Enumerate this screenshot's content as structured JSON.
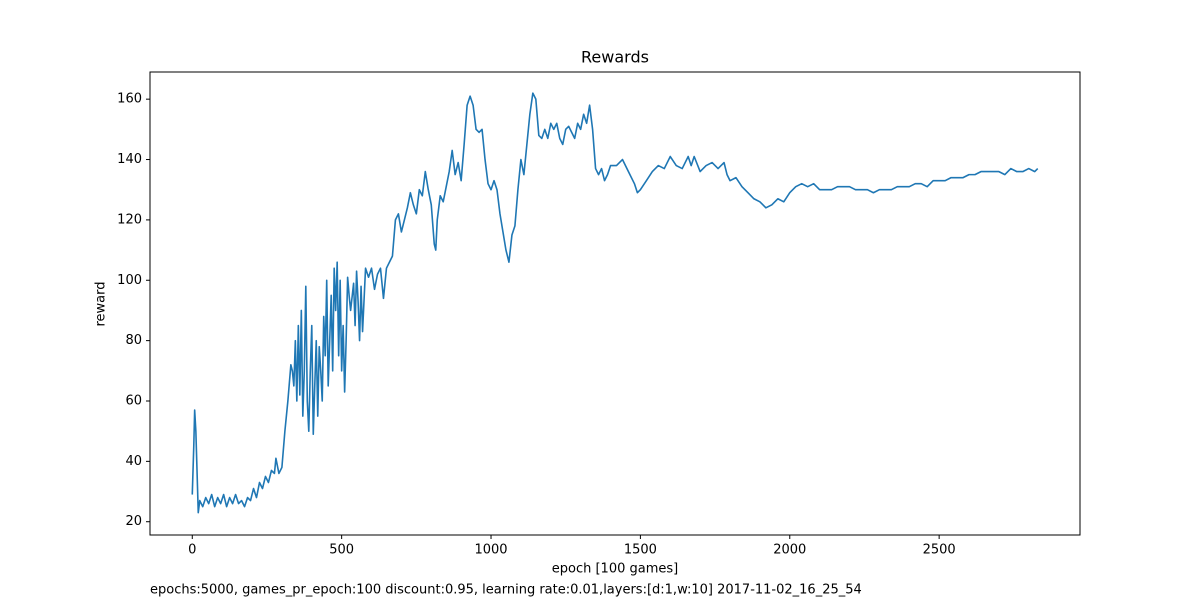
{
  "chart_data": {
    "type": "line",
    "title": "Rewards",
    "xlabel": "epoch [100 games]",
    "ylabel": "reward",
    "caption": "epochs:5000, games_pr_epoch:100 discount:0.95, learning rate:0.01,layers:[d:1,w:10] 2017-11-02_16_25_54",
    "xlim": [
      -141.5,
      2971.5
    ],
    "ylim": [
      15.6,
      169
    ],
    "xticks": [
      0,
      500,
      1000,
      1500,
      2000,
      2500
    ],
    "yticks": [
      20,
      40,
      60,
      80,
      100,
      120,
      140,
      160
    ],
    "series": [
      {
        "name": "reward",
        "color": "#1f77b4",
        "x": [
          0,
          5,
          8,
          12,
          15,
          20,
          25,
          35,
          45,
          55,
          65,
          75,
          85,
          95,
          105,
          115,
          125,
          135,
          145,
          155,
          165,
          175,
          185,
          195,
          205,
          215,
          225,
          235,
          245,
          255,
          265,
          275,
          280,
          290,
          300,
          310,
          320,
          330,
          335,
          340,
          345,
          350,
          355,
          360,
          365,
          370,
          375,
          380,
          385,
          390,
          395,
          400,
          405,
          410,
          415,
          420,
          425,
          430,
          435,
          440,
          445,
          450,
          455,
          460,
          465,
          470,
          475,
          480,
          485,
          490,
          495,
          500,
          505,
          510,
          515,
          520,
          525,
          530,
          540,
          545,
          550,
          555,
          560,
          565,
          570,
          580,
          590,
          600,
          610,
          620,
          630,
          640,
          650,
          660,
          670,
          680,
          690,
          700,
          710,
          720,
          730,
          740,
          750,
          760,
          770,
          780,
          790,
          800,
          810,
          815,
          820,
          830,
          840,
          850,
          860,
          870,
          880,
          890,
          900,
          910,
          920,
          930,
          940,
          950,
          960,
          970,
          980,
          990,
          1000,
          1010,
          1020,
          1030,
          1040,
          1050,
          1060,
          1070,
          1080,
          1090,
          1100,
          1110,
          1120,
          1130,
          1140,
          1150,
          1160,
          1170,
          1180,
          1190,
          1200,
          1210,
          1220,
          1230,
          1240,
          1250,
          1260,
          1270,
          1280,
          1290,
          1300,
          1310,
          1320,
          1330,
          1340,
          1350,
          1360,
          1370,
          1380,
          1390,
          1400,
          1420,
          1440,
          1460,
          1480,
          1490,
          1500,
          1520,
          1540,
          1560,
          1580,
          1600,
          1620,
          1640,
          1660,
          1670,
          1680,
          1700,
          1720,
          1740,
          1760,
          1780,
          1790,
          1800,
          1820,
          1840,
          1860,
          1880,
          1900,
          1920,
          1940,
          1960,
          1980,
          2000,
          2020,
          2040,
          2060,
          2080,
          2100,
          2120,
          2140,
          2160,
          2180,
          2200,
          2220,
          2240,
          2260,
          2280,
          2300,
          2320,
          2340,
          2360,
          2380,
          2400,
          2420,
          2440,
          2460,
          2480,
          2500,
          2520,
          2540,
          2560,
          2580,
          2600,
          2620,
          2640,
          2660,
          2680,
          2700,
          2720,
          2740,
          2760,
          2780,
          2800,
          2820,
          2830
        ],
        "values": [
          29,
          45,
          57,
          50,
          40,
          23,
          27,
          25,
          28,
          26,
          29,
          25,
          28,
          26,
          29,
          25,
          28,
          26,
          29,
          26,
          27,
          25,
          28,
          27,
          31,
          28,
          33,
          31,
          35,
          33,
          37,
          36,
          41,
          36,
          38,
          50,
          60,
          72,
          70,
          65,
          80,
          60,
          85,
          62,
          90,
          55,
          70,
          98,
          60,
          50,
          70,
          85,
          49,
          65,
          80,
          55,
          78,
          70,
          60,
          88,
          75,
          100,
          65,
          80,
          95,
          70,
          104,
          90,
          106,
          75,
          100,
          70,
          85,
          63,
          80,
          101,
          95,
          90,
          99,
          85,
          103,
          93,
          80,
          98,
          83,
          104,
          101,
          104,
          97,
          102,
          104,
          94,
          104,
          106,
          108,
          120,
          122,
          116,
          120,
          124,
          129,
          125,
          122,
          130,
          128,
          136,
          130,
          125,
          112,
          110,
          120,
          128,
          126,
          131,
          136,
          143,
          135,
          139,
          133,
          145,
          158,
          161,
          158,
          150,
          149,
          150,
          140,
          132,
          130,
          133,
          130,
          122,
          116,
          110,
          106,
          115,
          118,
          130,
          140,
          135,
          145,
          155,
          162,
          160,
          148,
          147,
          150,
          147,
          152,
          150,
          152,
          147,
          145,
          150,
          151,
          149,
          147,
          152,
          150,
          155,
          152,
          158,
          150,
          137,
          135,
          137,
          133,
          135,
          138,
          138,
          140,
          136,
          132,
          129,
          130,
          133,
          136,
          138,
          137,
          141,
          138,
          137,
          141,
          138,
          141,
          136,
          138,
          139,
          137,
          139,
          135,
          133,
          134,
          131,
          129,
          127,
          126,
          124,
          125,
          127,
          126,
          129,
          131,
          132,
          131,
          132,
          130,
          130,
          130,
          131,
          131,
          131,
          130,
          130,
          130,
          129,
          130,
          130,
          130,
          131,
          131,
          131,
          132,
          132,
          131,
          133,
          133,
          133,
          134,
          134,
          134,
          135,
          135,
          136,
          136,
          136,
          136,
          135,
          137,
          136,
          136,
          137,
          136,
          137
        ]
      }
    ]
  }
}
